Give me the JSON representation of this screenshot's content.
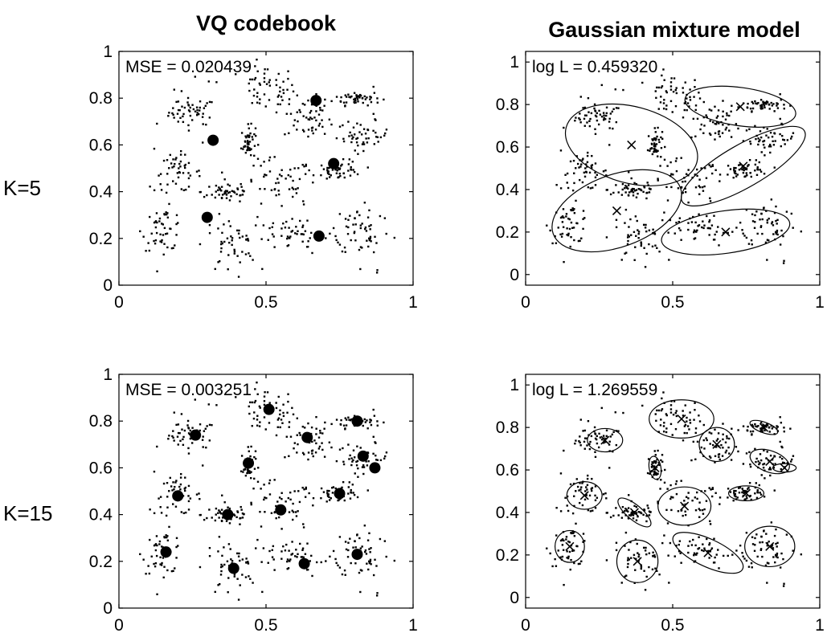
{
  "figure": {
    "column_titles": [
      "VQ codebook",
      "Gaussian mixture model"
    ],
    "row_labels": [
      "K=5",
      "K=15"
    ],
    "colors": {
      "ink": "#000000",
      "background": "#ffffff"
    }
  },
  "chart_data": [
    {
      "type": "scatter",
      "panel": "vq-k5",
      "title": "",
      "annotation": "MSE = 0.020439",
      "xlim": [
        0,
        1
      ],
      "ylim": [
        0,
        1
      ],
      "xticks": [
        "0",
        "0.5",
        "1"
      ],
      "yticks": [
        "0",
        "0.2",
        "0.4",
        "0.6",
        "0.8",
        "1"
      ],
      "grid": false,
      "codebook": [
        {
          "x": 0.32,
          "y": 0.62
        },
        {
          "x": 0.67,
          "y": 0.79
        },
        {
          "x": 0.73,
          "y": 0.52
        },
        {
          "x": 0.3,
          "y": 0.29
        },
        {
          "x": 0.68,
          "y": 0.21
        }
      ]
    },
    {
      "type": "scatter",
      "panel": "gmm-k5",
      "title": "",
      "annotation": "log L = 0.459320",
      "xlim": [
        0,
        1
      ],
      "ylim": [
        -0.05,
        1.05
      ],
      "xticks": [
        "0",
        "0.5",
        "1"
      ],
      "yticks": [
        "0",
        "0.2",
        "0.4",
        "0.6",
        "0.8",
        "1"
      ],
      "grid": false,
      "components": [
        {
          "mean": [
            0.36,
            0.61
          ],
          "rx": 0.23,
          "ry": 0.18,
          "angle": -15
        },
        {
          "mean": [
            0.73,
            0.79
          ],
          "rx": 0.19,
          "ry": 0.09,
          "angle": -8
        },
        {
          "mean": [
            0.74,
            0.51
          ],
          "rx": 0.24,
          "ry": 0.1,
          "angle": 30
        },
        {
          "mean": [
            0.31,
            0.3
          ],
          "rx": 0.23,
          "ry": 0.17,
          "angle": 20
        },
        {
          "mean": [
            0.68,
            0.2
          ],
          "rx": 0.22,
          "ry": 0.1,
          "angle": 8
        }
      ]
    },
    {
      "type": "scatter",
      "panel": "vq-k15",
      "title": "",
      "annotation": "MSE = 0.003251",
      "xlim": [
        0,
        1
      ],
      "ylim": [
        0,
        1
      ],
      "xticks": [
        "0",
        "0.5",
        "1"
      ],
      "yticks": [
        "0",
        "0.2",
        "0.4",
        "0.6",
        "0.8",
        "1"
      ],
      "grid": false,
      "codebook": [
        {
          "x": 0.26,
          "y": 0.74
        },
        {
          "x": 0.51,
          "y": 0.85
        },
        {
          "x": 0.64,
          "y": 0.73
        },
        {
          "x": 0.81,
          "y": 0.8
        },
        {
          "x": 0.44,
          "y": 0.62
        },
        {
          "x": 0.83,
          "y": 0.65
        },
        {
          "x": 0.87,
          "y": 0.6
        },
        {
          "x": 0.2,
          "y": 0.48
        },
        {
          "x": 0.37,
          "y": 0.4
        },
        {
          "x": 0.55,
          "y": 0.42
        },
        {
          "x": 0.75,
          "y": 0.49
        },
        {
          "x": 0.16,
          "y": 0.24
        },
        {
          "x": 0.39,
          "y": 0.17
        },
        {
          "x": 0.63,
          "y": 0.19
        },
        {
          "x": 0.81,
          "y": 0.23
        }
      ]
    },
    {
      "type": "scatter",
      "panel": "gmm-k15",
      "title": "",
      "annotation": "log L = 1.269559",
      "xlim": [
        0,
        1
      ],
      "ylim": [
        -0.05,
        1.05
      ],
      "xticks": [
        "0",
        "0.5",
        "1"
      ],
      "yticks": [
        "0",
        "0.2",
        "0.4",
        "0.6",
        "0.8",
        "1"
      ],
      "grid": false,
      "components": [
        {
          "mean": [
            0.27,
            0.74
          ],
          "rx": 0.06,
          "ry": 0.055,
          "angle": 0
        },
        {
          "mean": [
            0.53,
            0.84
          ],
          "rx": 0.11,
          "ry": 0.09,
          "angle": 0
        },
        {
          "mean": [
            0.65,
            0.72
          ],
          "rx": 0.06,
          "ry": 0.08,
          "angle": 0
        },
        {
          "mean": [
            0.81,
            0.8
          ],
          "rx": 0.05,
          "ry": 0.025,
          "angle": -20
        },
        {
          "mean": [
            0.44,
            0.61
          ],
          "rx": 0.02,
          "ry": 0.055,
          "angle": 10
        },
        {
          "mean": [
            0.83,
            0.64
          ],
          "rx": 0.07,
          "ry": 0.05,
          "angle": -20
        },
        {
          "mean": [
            0.88,
            0.61
          ],
          "rx": 0.04,
          "ry": 0.02,
          "angle": 0
        },
        {
          "mean": [
            0.2,
            0.48
          ],
          "rx": 0.06,
          "ry": 0.065,
          "angle": 0
        },
        {
          "mean": [
            0.37,
            0.4
          ],
          "rx": 0.07,
          "ry": 0.035,
          "angle": -40
        },
        {
          "mean": [
            0.54,
            0.43
          ],
          "rx": 0.09,
          "ry": 0.09,
          "angle": 0
        },
        {
          "mean": [
            0.75,
            0.49
          ],
          "rx": 0.06,
          "ry": 0.035,
          "angle": 0
        },
        {
          "mean": [
            0.15,
            0.24
          ],
          "rx": 0.05,
          "ry": 0.075,
          "angle": 0
        },
        {
          "mean": [
            0.38,
            0.17
          ],
          "rx": 0.07,
          "ry": 0.1,
          "angle": 0
        },
        {
          "mean": [
            0.62,
            0.21
          ],
          "rx": 0.13,
          "ry": 0.065,
          "angle": -25
        },
        {
          "mean": [
            0.83,
            0.24
          ],
          "rx": 0.085,
          "ry": 0.095,
          "angle": 0
        }
      ]
    }
  ]
}
